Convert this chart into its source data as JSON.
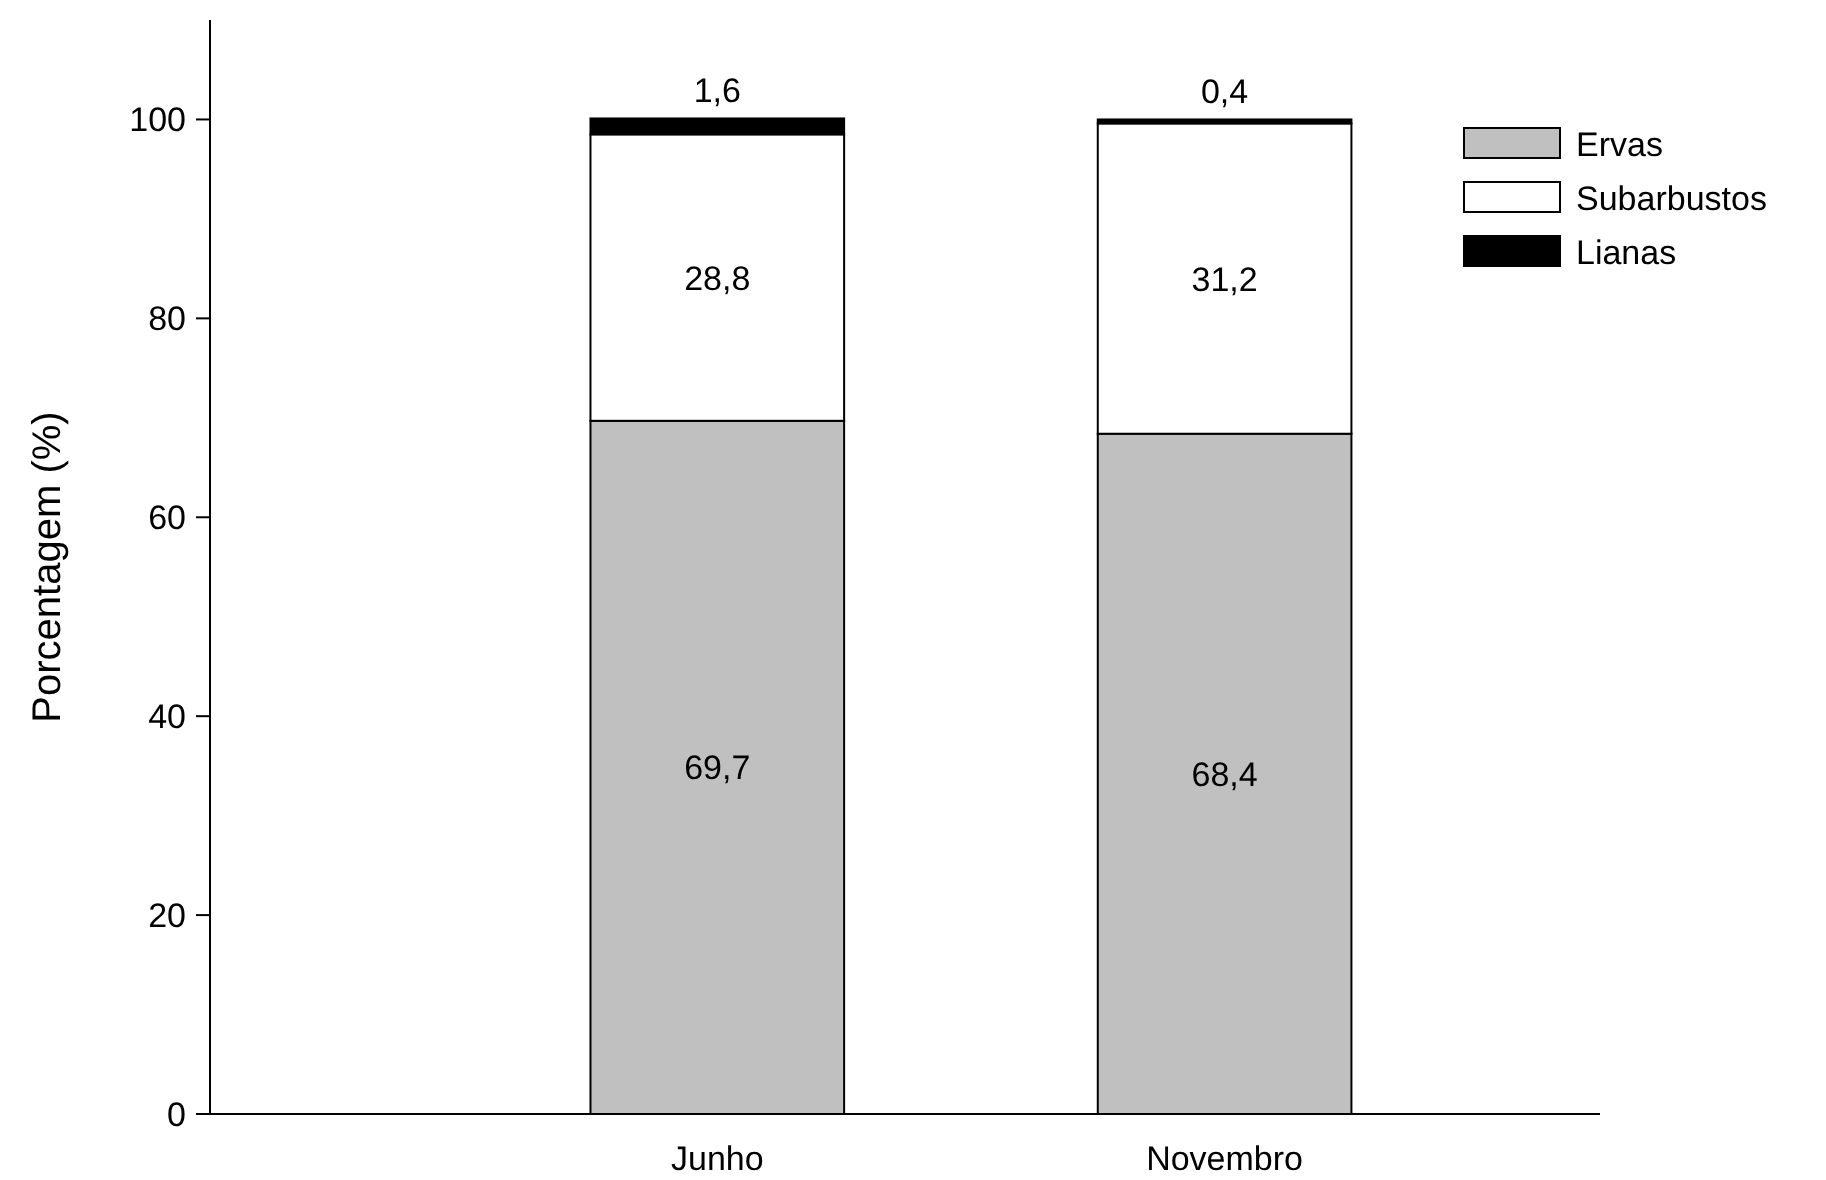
{
  "chart_data": {
    "type": "bar",
    "stacked": true,
    "ylabel": "Porcentagem (%)",
    "categories": [
      "Junho",
      "Novembro"
    ],
    "series": [
      {
        "name": "Ervas",
        "color": "#c0c0c0",
        "values": [
          69.7,
          68.4
        ],
        "value_labels": [
          "69,7",
          "68,4"
        ]
      },
      {
        "name": "Subarbustos",
        "color": "#ffffff",
        "values": [
          28.8,
          31.2
        ],
        "value_labels": [
          "28,8",
          "31,2"
        ]
      },
      {
        "name": "Lianas",
        "color": "#000000",
        "values": [
          1.6,
          0.4
        ],
        "value_labels": [
          "1,6",
          "0,4"
        ]
      }
    ],
    "ylim": [
      0,
      110
    ],
    "yticks": [
      0,
      20,
      40,
      60,
      80,
      100
    ],
    "grid": false,
    "legend": "top right"
  }
}
